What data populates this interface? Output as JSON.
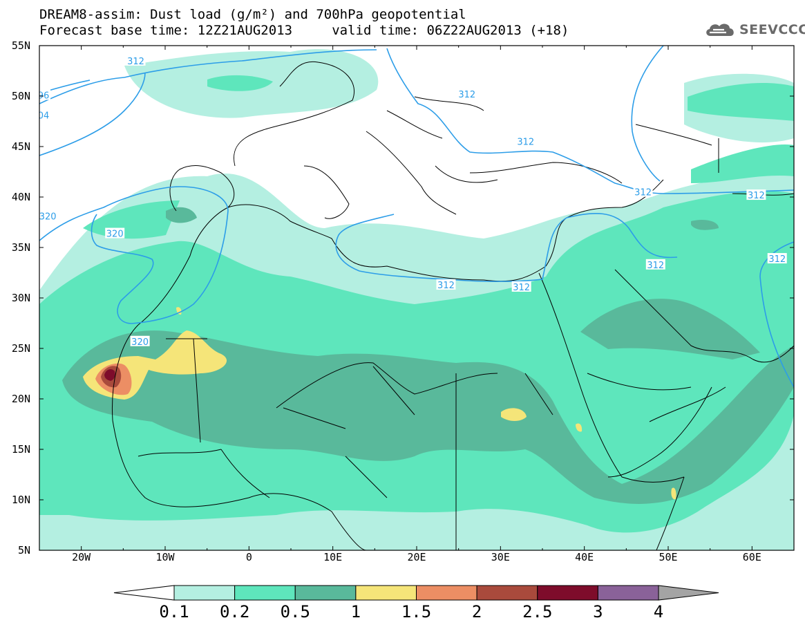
{
  "title": {
    "line1": "DREAM8-assim: Dust load (g/m²) and 700hPa geopotential",
    "line2": "Forecast base time: 12Z21AUG2013     valid time: 06Z22AUG2013 (+18)"
  },
  "logo": {
    "text": "SEEVCCC",
    "icon": "cloud-logo-icon"
  },
  "axes": {
    "lat_labels": [
      "55N",
      "50N",
      "45N",
      "40N",
      "35N",
      "30N",
      "25N",
      "20N",
      "15N",
      "10N",
      "5N"
    ],
    "lon_labels": [
      "20W",
      "10W",
      "0",
      "10E",
      "20E",
      "30E",
      "40E",
      "50E",
      "60E"
    ]
  },
  "contour_labels": [
    {
      "text": "312",
      "lon": -13.5,
      "lat": 53.5
    },
    {
      "text": "312",
      "lon": 26,
      "lat": 50.2
    },
    {
      "text": "312",
      "lon": 33,
      "lat": 45.5
    },
    {
      "text": "312",
      "lon": 47,
      "lat": 40.5
    },
    {
      "text": "312",
      "lon": 60.5,
      "lat": 40.2
    },
    {
      "text": "312",
      "lon": 23.5,
      "lat": 31.3
    },
    {
      "text": "312",
      "lon": 32.5,
      "lat": 31.1
    },
    {
      "text": "312",
      "lon": 48.5,
      "lat": 33.3
    },
    {
      "text": "312",
      "lon": 63,
      "lat": 33.9
    },
    {
      "text": "320",
      "lon": -16,
      "lat": 36.4
    },
    {
      "text": "320",
      "lon": -13,
      "lat": 25.7
    },
    {
      "text": "320",
      "lon": -24,
      "lat": 38.1
    },
    {
      "text": "96",
      "lon": -24.5,
      "lat": 50.1
    },
    {
      "text": "04",
      "lon": -24.5,
      "lat": 48.1
    }
  ],
  "colorbar": {
    "labels": [
      "0.1",
      "0.2",
      "0.5",
      "1",
      "1.5",
      "2",
      "2.5",
      "3",
      "4"
    ],
    "colors": [
      "#ffffff",
      "#b4efe1",
      "#5ee6bc",
      "#59b99b",
      "#f5e579",
      "#ec8e64",
      "#a94a3c",
      "#7e0c2b",
      "#8a6299",
      "#a4a4a4"
    ]
  }
}
